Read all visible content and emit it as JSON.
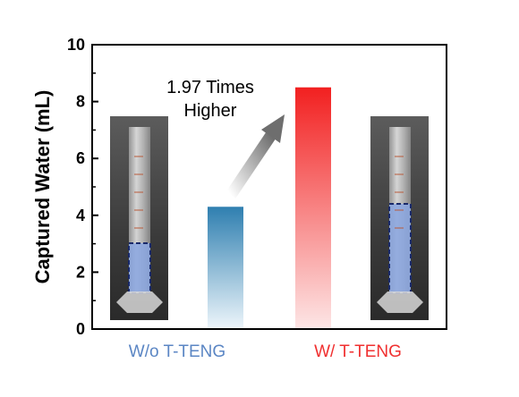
{
  "chart_data": {
    "type": "bar",
    "categories": [
      "W/o T-TENG",
      "W/ T-TENG"
    ],
    "values": [
      4.3,
      8.5
    ],
    "ylabel": "Captured Water (mL)",
    "xlabel": "",
    "ylim": [
      0,
      10
    ],
    "yticks": [
      "0",
      "2",
      "4",
      "6",
      "8",
      "10"
    ],
    "grid": false,
    "bar_colors": [
      "#2f7fb0",
      "#f22020"
    ],
    "category_label_colors": [
      "#5b86c4",
      "#f03030"
    ],
    "annotation": {
      "lines": [
        "1.97 Times",
        "Higher"
      ]
    },
    "insets": [
      {
        "name": "cylinder-photo-without",
        "water_level_fraction": 0.3
      },
      {
        "name": "cylinder-photo-with",
        "water_level_fraction": 0.6
      }
    ]
  }
}
